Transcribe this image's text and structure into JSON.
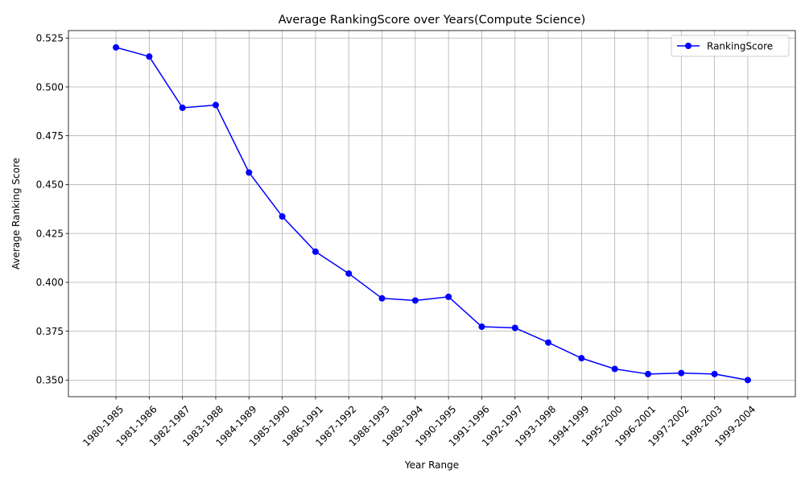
{
  "chart_data": {
    "type": "line",
    "title": "Average RankingScore over Years(Compute Science)",
    "xlabel": "Year Range",
    "ylabel": "Average Ranking Score",
    "categories": [
      "1980-1985",
      "1981-1986",
      "1982-1987",
      "1983-1988",
      "1984-1989",
      "1985-1990",
      "1986-1991",
      "1987-1992",
      "1988-1993",
      "1989-1994",
      "1990-1995",
      "1991-1996",
      "1992-1997",
      "1993-1998",
      "1994-1999",
      "1995-2000",
      "1996-2001",
      "1997-2002",
      "1998-2003",
      "1999-2004"
    ],
    "series": [
      {
        "name": "RankingScore",
        "color": "#0000ff",
        "marker": "circle",
        "values": [
          0.5202,
          0.5155,
          0.4893,
          0.4907,
          0.4562,
          0.4337,
          0.4157,
          0.4045,
          0.3918,
          0.3907,
          0.3926,
          0.3773,
          0.3767,
          0.3692,
          0.3612,
          0.3557,
          0.3531,
          0.3536,
          0.3531,
          0.35
        ]
      }
    ],
    "ylim": [
      0.3415,
      0.5288
    ],
    "yticks": [
      0.35,
      0.375,
      0.4,
      0.425,
      0.45,
      0.475,
      0.5,
      0.525
    ],
    "ytick_labels": [
      "0.350",
      "0.375",
      "0.400",
      "0.425",
      "0.450",
      "0.475",
      "0.500",
      "0.525"
    ],
    "xtick_rotation": 45,
    "grid": true,
    "grid_color": "#b0b0b0",
    "legend_position": "top-right"
  }
}
